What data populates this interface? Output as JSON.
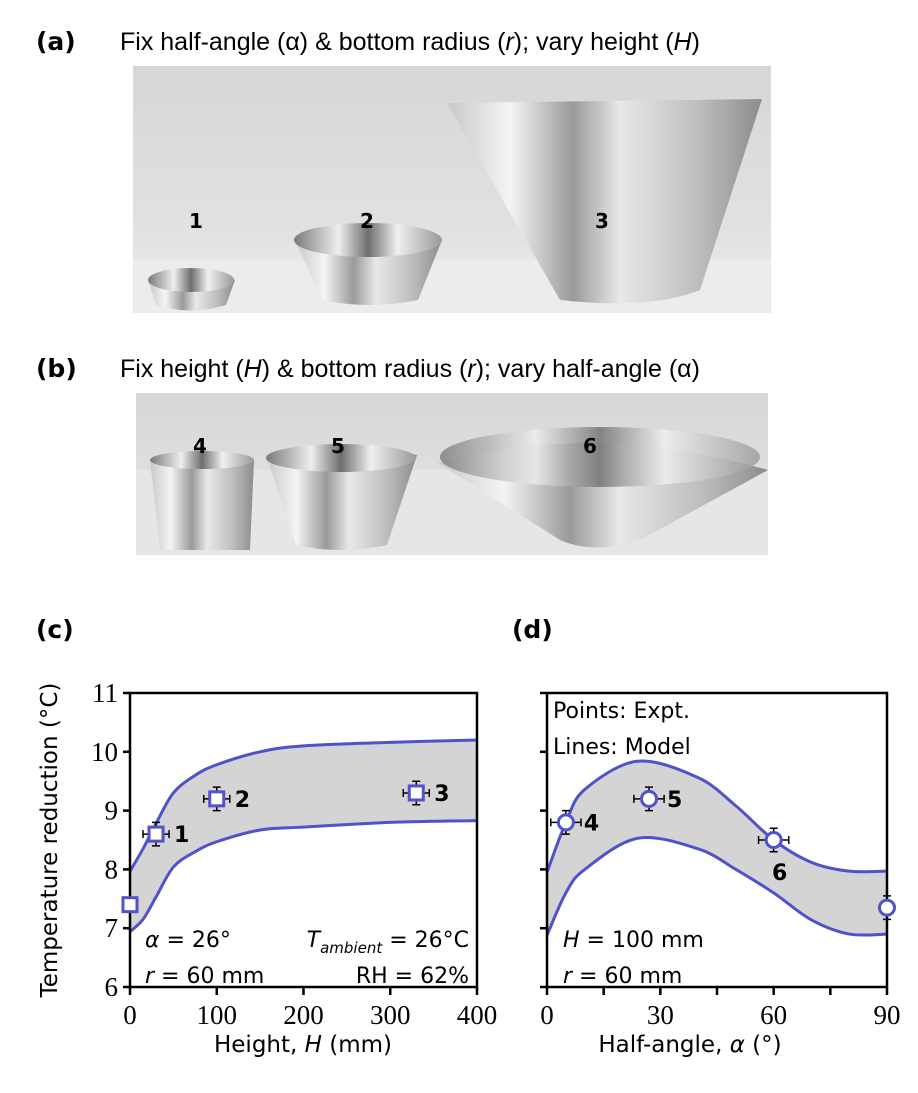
{
  "panel_a": {
    "label": "(a)",
    "caption_parts": [
      "Fix half-angle (α) & bottom radius (",
      "r",
      "); vary height (",
      "H",
      ")"
    ],
    "photo_labels": [
      "1",
      "2",
      "3"
    ]
  },
  "panel_b": {
    "label": "(b)",
    "caption_parts": [
      "Fix height (",
      "H",
      ") & bottom radius (",
      "r",
      "); vary half-angle (α)"
    ],
    "photo_labels": [
      "4",
      "5",
      "6"
    ]
  },
  "colors": {
    "line": "#4f52c9",
    "band": "#d4d4d4",
    "marker_fill": "#ffffff",
    "axis": "#000000"
  },
  "chart_data": [
    {
      "panel_label": "(c)",
      "type": "line",
      "xlabel_parts": [
        "Height, ",
        "H",
        " (mm)"
      ],
      "ylabel": "Temperature reduction (°C)",
      "xlim": [
        0,
        400
      ],
      "ylim": [
        6,
        11
      ],
      "xticks": [
        0,
        100,
        200,
        300,
        400
      ],
      "yticks": [
        6,
        7,
        8,
        9,
        10,
        11
      ],
      "grid": false,
      "band": {
        "x": [
          0,
          15,
          30,
          50,
          75,
          100,
          150,
          200,
          300,
          400
        ],
        "upper": [
          7.97,
          8.35,
          8.78,
          9.3,
          9.6,
          9.78,
          10.0,
          10.1,
          10.16,
          10.2
        ],
        "lower": [
          6.94,
          7.15,
          7.53,
          8.04,
          8.3,
          8.47,
          8.67,
          8.72,
          8.8,
          8.83
        ]
      },
      "marker": "square",
      "points": [
        {
          "label": "",
          "x": 0,
          "y": 7.4,
          "xerr": 0,
          "yerr": 0
        },
        {
          "label": "1",
          "x": 30,
          "y": 8.6,
          "xerr": 15,
          "yerr": 0.2
        },
        {
          "label": "2",
          "x": 100,
          "y": 9.2,
          "xerr": 15,
          "yerr": 0.2
        },
        {
          "label": "3",
          "x": 330,
          "y": 9.3,
          "xerr": 15,
          "yerr": 0.2
        }
      ],
      "annotations": {
        "alpha": [
          "α",
          " = 26°"
        ],
        "r": [
          "r",
          " = 60 mm"
        ],
        "tamb": [
          "T",
          "ambient",
          " = 26°C"
        ],
        "rh": "RH = 62%"
      }
    },
    {
      "panel_label": "(d)",
      "type": "line",
      "xlabel_parts": [
        "Half-angle, ",
        "α",
        " (°)"
      ],
      "xlim": [
        0,
        90
      ],
      "ylim": [
        6,
        11
      ],
      "xticks": [
        0,
        30,
        60,
        90
      ],
      "grid": false,
      "band": {
        "x": [
          0,
          5,
          10,
          24,
          40,
          50,
          60,
          70,
          80,
          90
        ],
        "upper": [
          7.95,
          8.8,
          9.36,
          9.84,
          9.56,
          9.08,
          8.5,
          8.12,
          7.97,
          7.97
        ],
        "lower": [
          6.88,
          7.6,
          8.0,
          8.53,
          8.35,
          8.0,
          7.6,
          7.14,
          6.9,
          6.9
        ]
      },
      "marker": "circle",
      "points": [
        {
          "label": "4",
          "x": 5,
          "y": 8.8,
          "xerr": 4,
          "yerr": 0.2
        },
        {
          "label": "5",
          "x": 27,
          "y": 9.2,
          "xerr": 4,
          "yerr": 0.2
        },
        {
          "label": "6",
          "x": 60,
          "y": 8.5,
          "xerr": 4,
          "yerr": 0.2
        },
        {
          "label": "",
          "x": 90,
          "y": 7.35,
          "xerr": 0,
          "yerr": 0.2
        }
      ],
      "legend": [
        "Points: Expt.",
        "Lines: Model"
      ],
      "annotations": {
        "H": [
          "H",
          " = 100 mm"
        ],
        "r": [
          "r",
          " = 60 mm"
        ]
      }
    }
  ]
}
